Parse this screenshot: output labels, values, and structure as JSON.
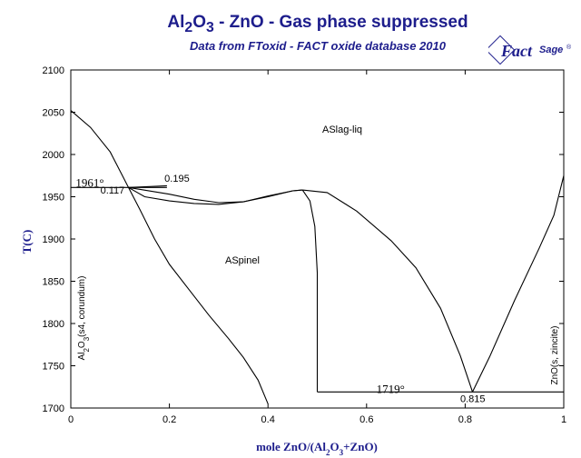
{
  "chart_data": {
    "type": "line",
    "title": {
      "p1": "Al",
      "s1": "2",
      "p2": "O",
      "s2": "3",
      "p3": " - ZnO -  Gas phase suppressed"
    },
    "subtitle": "Data from FToxid - FACT oxide database 2010",
    "logo": {
      "text1": "Fact",
      "text2": "Sage",
      "mark": "®"
    },
    "xlabel": {
      "p1": "mole ZnO/(Al",
      "s1": "2",
      "p2": "O",
      "s2": "3",
      "p3": "+ZnO)"
    },
    "ylabel": "T(C)",
    "xlim": [
      0,
      1
    ],
    "ylim": [
      1700,
      2100
    ],
    "xticks": [
      "0",
      "0.2",
      "0.4",
      "0.6",
      "0.8",
      "1"
    ],
    "yticks": [
      "1700",
      "1750",
      "1800",
      "1850",
      "1900",
      "1950",
      "2000",
      "2050",
      "2100"
    ],
    "xtick_values": [
      0,
      0.2,
      0.4,
      0.6,
      0.8,
      1
    ],
    "ytick_values": [
      1700,
      1750,
      1800,
      1850,
      1900,
      1950,
      2000,
      2050,
      2100
    ],
    "phase_labels": [
      {
        "text": "ASlag-liq",
        "x": 0.56,
        "y": 2015
      },
      {
        "text": "ASpinel",
        "x": 0.35,
        "y": 1862
      }
    ],
    "left_edge_label": {
      "p1": "Al",
      "s1": "2",
      "p2": "O",
      "s2": "3",
      "p3": "(s4, corundum)"
    },
    "right_edge_label": "ZnO(s, zincite)",
    "annotations": [
      {
        "text": "1961°",
        "x": 0.01,
        "y": 1962,
        "style": "temp"
      },
      {
        "text": "0.117",
        "x": 0.06,
        "y": 1954,
        "style": "annot"
      },
      {
        "text": "0.195",
        "x": 0.19,
        "y": 1968,
        "style": "annot"
      },
      {
        "text": "1719°",
        "x": 0.62,
        "y": 1718,
        "style": "temp"
      },
      {
        "text": "0.815",
        "x": 0.79,
        "y": 1707,
        "style": "annot"
      }
    ],
    "series": [
      {
        "id": "liquidus-left",
        "x": [
          0,
          0.04,
          0.08,
          0.117
        ],
        "y": [
          2052,
          2032,
          2003,
          1961
        ]
      },
      {
        "id": "liquidus-corundum-ext",
        "x": [
          0.117,
          0.16,
          0.195
        ],
        "y": [
          1961,
          1962,
          1963
        ]
      },
      {
        "id": "eutectic-corundum",
        "x": [
          0,
          0.117,
          0.195
        ],
        "y": [
          1961,
          1961,
          1961
        ]
      },
      {
        "id": "liquidus-spinel",
        "x": [
          0.117,
          0.2,
          0.25,
          0.3,
          0.35,
          0.4,
          0.45,
          0.47
        ],
        "y": [
          1961,
          1953,
          1947,
          1943,
          1944,
          1950,
          1957,
          1958
        ]
      },
      {
        "id": "solidus-spinel",
        "x": [
          0.117,
          0.15,
          0.2,
          0.25,
          0.3,
          0.35,
          0.4,
          0.45,
          0.47
        ],
        "y": [
          1961,
          1950,
          1945,
          1942,
          1941,
          1944,
          1951,
          1957,
          1958
        ]
      },
      {
        "id": "spinel-left-boundary",
        "x": [
          0.117,
          0.14,
          0.17,
          0.2,
          0.24,
          0.28,
          0.32,
          0.35,
          0.38,
          0.4
        ],
        "y": [
          1961,
          1935,
          1900,
          1870,
          1840,
          1810,
          1782,
          1760,
          1733,
          1705
        ]
      },
      {
        "id": "spinel-right-boundary",
        "x": [
          0.47,
          0.485,
          0.495,
          0.5,
          0.5
        ],
        "y": [
          1958,
          1945,
          1915,
          1860,
          1719
        ]
      },
      {
        "id": "liquidus-zno-side",
        "x": [
          0.47,
          0.52,
          0.58,
          0.65,
          0.7,
          0.75,
          0.79,
          0.815
        ],
        "y": [
          1958,
          1955,
          1933,
          1898,
          1866,
          1818,
          1762,
          1719
        ]
      },
      {
        "id": "liquidus-zincite",
        "x": [
          0.815,
          0.85,
          0.9,
          0.95,
          0.98,
          1.0
        ],
        "y": [
          1719,
          1761,
          1827,
          1889,
          1928,
          1975
        ]
      },
      {
        "id": "eutectic-zincite",
        "x": [
          0.5,
          1.0
        ],
        "y": [
          1719,
          1719
        ]
      }
    ]
  }
}
